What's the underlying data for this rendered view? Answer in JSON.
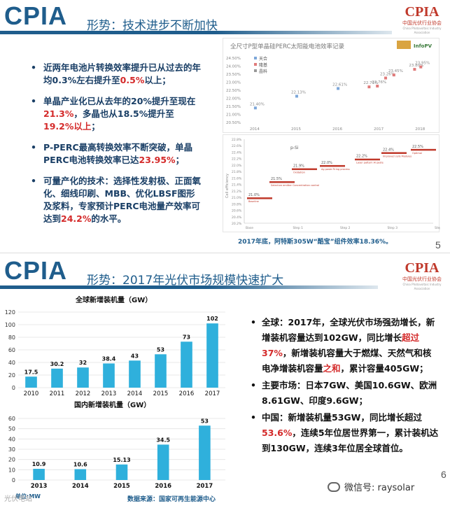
{
  "slide1": {
    "brand": "CPIA",
    "heading": "形势：技术进步不断加快",
    "logo": {
      "text": "CPIA",
      "sub": "中国光伏行业协会",
      "sub2": "China Photovoltaic Industry Association"
    },
    "bullets": [
      {
        "parts": [
          {
            "t": "近两年电池片转换效率提升已从过去的年均0.3%左右提升至",
            "red": false
          },
          {
            "t": "0.5%",
            "red": true
          },
          {
            "t": "以上；",
            "red": false
          }
        ]
      },
      {
        "parts": [
          {
            "t": "单晶产业化已从去年的20%提升至现在",
            "red": false
          },
          {
            "t": "21.3%",
            "red": true
          },
          {
            "t": "，多晶也从18.5%提升至",
            "red": false
          },
          {
            "t": "19.2%以上",
            "red": true
          },
          {
            "t": "；",
            "red": false
          }
        ]
      },
      {
        "parts": [
          {
            "t": "P-PERC最高转换效率不断突破，单晶PERC电池转换效率已达",
            "red": false
          },
          {
            "t": "23.95%",
            "red": true
          },
          {
            "t": "；",
            "red": false
          }
        ]
      },
      {
        "parts": [
          {
            "t": "可量产化的技术：选择性发射极、正面氧化、细线印刷、MBB、优化LBSF图形及浆料，专家预计PERC电池量产效率可达到",
            "red": false
          },
          {
            "t": "24.2%",
            "red": true
          },
          {
            "t": "的水平。",
            "red": false
          }
        ]
      }
    ],
    "page_no": "5",
    "caption": "2017年底，阿特斯305W“酷宝”组件效率18.36%。",
    "chart_top": {
      "title": "全尺寸P型单晶硅PERC太阳能电池效率记录",
      "legend": [
        "天合",
        "隆基",
        "晶科"
      ],
      "brand_logos": [
        "InfoPV"
      ],
      "y_ticks": [
        "24.50%",
        "24.00%",
        "23.50%",
        "23.00%",
        "22.50%",
        "22.00%",
        "21.50%",
        "21.00%",
        "20.50%"
      ],
      "x_ticks": [
        "2014",
        "2015",
        "2016",
        "2017",
        "2018"
      ],
      "points": [
        {
          "label": "21.40%",
          "x": 2014.0,
          "y": 21.4,
          "color": "#7da7d9"
        },
        {
          "label": "22.13%",
          "x": 2015.0,
          "y": 22.13,
          "color": "#7da7d9"
        },
        {
          "label": "22.61%",
          "x": 2016.0,
          "y": 22.61,
          "color": "#7da7d9"
        },
        {
          "label": "22.71%",
          "x": 2016.75,
          "y": 22.71,
          "color": "#e07a7a"
        },
        {
          "label": "22.76%",
          "x": 2016.95,
          "y": 22.76,
          "color": "#e07a7a"
        },
        {
          "label": "23.26%",
          "x": 2017.15,
          "y": 23.26,
          "color": "#e07a7a"
        },
        {
          "label": "23.45%",
          "x": 2017.35,
          "y": 23.45,
          "color": "#e07a7a"
        },
        {
          "label": "23.80%",
          "x": 2017.85,
          "y": 23.8,
          "color": "#e07a7a"
        },
        {
          "label": "23.95%",
          "x": 2018.0,
          "y": 23.95,
          "color": "#e07a7a"
        }
      ]
    },
    "chart_bottom": {
      "label": "p-Si",
      "y_axis_label": "Cell efficiency",
      "y_ticks": [
        "22.8%",
        "22.6%",
        "22.4%",
        "22.2%",
        "22.0%",
        "21.8%",
        "21.6%",
        "21.4%",
        "21.2%",
        "21.0%",
        "20.8%",
        "20.6%",
        "20.4%",
        "20.2%"
      ],
      "x_ticks": [
        "Base",
        "Step 1",
        "Step 2",
        "Step 3",
        "Step 4"
      ],
      "steps": [
        {
          "value": "21.0%",
          "note": "Baseline",
          "y": 21.0
        },
        {
          "value": "21.5%",
          "note": "Selective emitter Concentration control",
          "y": 21.5
        },
        {
          "value": "21.9%",
          "note": "Oxidation",
          "y": 21.9
        },
        {
          "value": "22.0%",
          "note": "Ag paste Firing process",
          "y": 22.0
        },
        {
          "value": "22.2%",
          "note": "Laser pattern Al paste",
          "y": 22.2
        },
        {
          "value": "22.4%",
          "note": "Improved cells Modules",
          "y": 22.4
        },
        {
          "value": "22.5%",
          "note": "Optimal",
          "y": 22.5
        }
      ]
    }
  },
  "slide2": {
    "brand": "CPIA",
    "heading": "形势：2017年光伏市场规模快速扩大",
    "logo": {
      "text": "CPIA",
      "sub": "中国光伏行业协会",
      "sub2": "China Photovoltaic Industry Association"
    },
    "page_no": "6",
    "bullets": [
      {
        "parts": [
          {
            "t": "全球：2017年，全球光伏市场强劲增长，新增装机容量达到102GW，同比增长",
            "red": false
          },
          {
            "t": "超过37%",
            "red": true
          },
          {
            "t": "，新增装机容量大于燃煤、天然气和核电净增装机容量",
            "red": false
          },
          {
            "t": "之和",
            "red": true
          },
          {
            "t": "，累计容量405GW；",
            "red": false
          }
        ]
      },
      {
        "parts": [
          {
            "t": "主要市场：日本7GW、美国10.6GW、欧洲8.61GW、印度9.6GW；",
            "red": false
          }
        ]
      },
      {
        "parts": [
          {
            "t": "中国：新增装机量53GW，同比增长超过",
            "red": false
          },
          {
            "t": "53.6%",
            "red": true
          },
          {
            "t": "，连续5年位居世界第一，累计装机达到130GW，连续3年位居全球首位。",
            "red": false
          }
        ]
      }
    ],
    "source": "数据来源：国家可再生能源中心",
    "unit": "单位:MW",
    "watermark": "光伏电站",
    "wechat": "微信号: raysolar",
    "colors": {
      "bar": "#2fb0dc",
      "brand": "#1f5d8c",
      "red": "#d42a2a"
    },
    "chart_data": [
      {
        "type": "bar",
        "title": "全球新增装机量（GW）",
        "categories": [
          "2010",
          "2011",
          "2012",
          "2013",
          "2014",
          "2015",
          "2016",
          "2017"
        ],
        "values": [
          17.5,
          30.2,
          32,
          38.4,
          43,
          53,
          73,
          102
        ],
        "data_labels": [
          "17.5",
          "30.2",
          "32",
          "38.4",
          "43",
          "53",
          "73",
          "102"
        ],
        "ylim": [
          0,
          120
        ],
        "y_ticks": [
          "0",
          "20",
          "40",
          "60",
          "80",
          "100",
          "120"
        ],
        "grid": true
      },
      {
        "type": "bar",
        "title": "国内新增装机量（GW）",
        "categories": [
          "2013",
          "2014",
          "2015",
          "2016",
          "2017"
        ],
        "values": [
          10.9,
          10.6,
          15.13,
          34.5,
          53
        ],
        "data_labels": [
          "10.9",
          "10.6",
          "15.13",
          "34.5",
          "53"
        ],
        "ylim": [
          0,
          60
        ],
        "y_ticks": [
          "0",
          "10",
          "20",
          "30",
          "40",
          "50",
          "60"
        ],
        "grid": true
      }
    ]
  }
}
